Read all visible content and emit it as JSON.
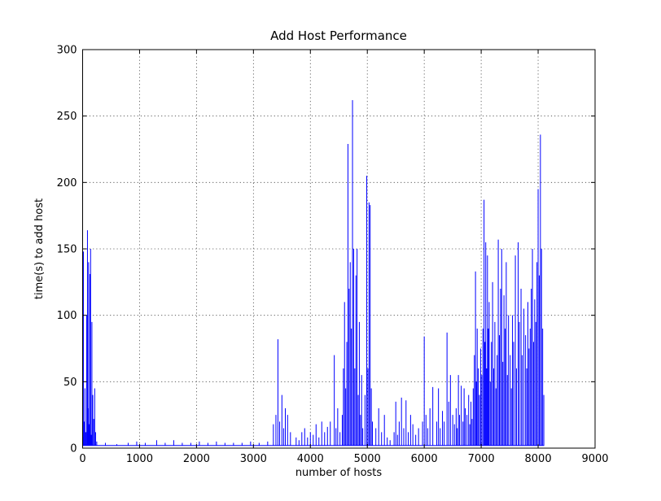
{
  "chart_data": {
    "type": "line",
    "title": "Add Host Performance",
    "xlabel": "number of hosts",
    "ylabel": "time(s) to add host",
    "xlim": [
      0,
      9000
    ],
    "ylim": [
      0,
      300
    ],
    "xticks": [
      0,
      1000,
      2000,
      3000,
      4000,
      5000,
      6000,
      7000,
      8000,
      9000
    ],
    "yticks": [
      0,
      50,
      100,
      150,
      200,
      250,
      300
    ],
    "grid": true,
    "legend": "none",
    "line_color": "#0000ff",
    "grid_color": "#444444",
    "axis_color": "#000000",
    "background_color": "#ffffff",
    "baseline": 2,
    "x_start": 0,
    "x_end": 8100,
    "spikes": [
      [
        5,
        8
      ],
      [
        15,
        148
      ],
      [
        25,
        20
      ],
      [
        40,
        45
      ],
      [
        55,
        12
      ],
      [
        70,
        100
      ],
      [
        85,
        164
      ],
      [
        95,
        30
      ],
      [
        105,
        140
      ],
      [
        118,
        18
      ],
      [
        128,
        131
      ],
      [
        140,
        150
      ],
      [
        152,
        10
      ],
      [
        163,
        95
      ],
      [
        178,
        40
      ],
      [
        195,
        22
      ],
      [
        212,
        45
      ],
      [
        228,
        12
      ],
      [
        248,
        5
      ],
      [
        400,
        4
      ],
      [
        600,
        3
      ],
      [
        800,
        4
      ],
      [
        950,
        5
      ],
      [
        1100,
        4
      ],
      [
        1300,
        6
      ],
      [
        1450,
        4
      ],
      [
        1600,
        6
      ],
      [
        1750,
        4
      ],
      [
        1900,
        4
      ],
      [
        2050,
        5
      ],
      [
        2200,
        4
      ],
      [
        2350,
        5
      ],
      [
        2500,
        4
      ],
      [
        2650,
        4
      ],
      [
        2800,
        4
      ],
      [
        2950,
        5
      ],
      [
        3100,
        4
      ],
      [
        3250,
        5
      ],
      [
        3350,
        18
      ],
      [
        3395,
        25
      ],
      [
        3430,
        82
      ],
      [
        3460,
        20
      ],
      [
        3500,
        40
      ],
      [
        3530,
        15
      ],
      [
        3560,
        30
      ],
      [
        3600,
        25
      ],
      [
        3650,
        12
      ],
      [
        3750,
        8
      ],
      [
        3800,
        6
      ],
      [
        3850,
        12
      ],
      [
        3900,
        15
      ],
      [
        3950,
        8
      ],
      [
        4000,
        12
      ],
      [
        4050,
        10
      ],
      [
        4100,
        18
      ],
      [
        4150,
        8
      ],
      [
        4200,
        20
      ],
      [
        4250,
        12
      ],
      [
        4300,
        16
      ],
      [
        4350,
        20
      ],
      [
        4420,
        70
      ],
      [
        4450,
        15
      ],
      [
        4480,
        30
      ],
      [
        4520,
        12
      ],
      [
        4560,
        25
      ],
      [
        4580,
        60
      ],
      [
        4600,
        110
      ],
      [
        4620,
        45
      ],
      [
        4640,
        80
      ],
      [
        4660,
        229
      ],
      [
        4680,
        120
      ],
      [
        4700,
        140
      ],
      [
        4720,
        90
      ],
      [
        4740,
        262
      ],
      [
        4760,
        150
      ],
      [
        4780,
        60
      ],
      [
        4800,
        130
      ],
      [
        4820,
        150
      ],
      [
        4840,
        40
      ],
      [
        4860,
        95
      ],
      [
        4880,
        25
      ],
      [
        4900,
        55
      ],
      [
        4920,
        15
      ],
      [
        4960,
        40
      ],
      [
        4990,
        205
      ],
      [
        5010,
        60
      ],
      [
        5030,
        185
      ],
      [
        5050,
        183
      ],
      [
        5070,
        45
      ],
      [
        5090,
        20
      ],
      [
        5150,
        15
      ],
      [
        5200,
        30
      ],
      [
        5250,
        12
      ],
      [
        5300,
        25
      ],
      [
        5350,
        8
      ],
      [
        5400,
        6
      ],
      [
        5470,
        12
      ],
      [
        5500,
        35
      ],
      [
        5530,
        10
      ],
      [
        5560,
        20
      ],
      [
        5600,
        38
      ],
      [
        5640,
        15
      ],
      [
        5680,
        36
      ],
      [
        5720,
        12
      ],
      [
        5760,
        25
      ],
      [
        5800,
        18
      ],
      [
        5850,
        10
      ],
      [
        5900,
        15
      ],
      [
        5970,
        20
      ],
      [
        6000,
        84
      ],
      [
        6030,
        25
      ],
      [
        6060,
        15
      ],
      [
        6100,
        30
      ],
      [
        6150,
        46
      ],
      [
        6220,
        20
      ],
      [
        6250,
        45
      ],
      [
        6280,
        15
      ],
      [
        6320,
        28
      ],
      [
        6350,
        20
      ],
      [
        6400,
        87
      ],
      [
        6430,
        35
      ],
      [
        6460,
        55
      ],
      [
        6500,
        25
      ],
      [
        6530,
        18
      ],
      [
        6560,
        30
      ],
      [
        6580,
        15
      ],
      [
        6600,
        55
      ],
      [
        6620,
        25
      ],
      [
        6650,
        47
      ],
      [
        6680,
        20
      ],
      [
        6700,
        45
      ],
      [
        6720,
        30
      ],
      [
        6750,
        25
      ],
      [
        6780,
        40
      ],
      [
        6800,
        18
      ],
      [
        6820,
        35
      ],
      [
        6840,
        22
      ],
      [
        6860,
        45
      ],
      [
        6880,
        70
      ],
      [
        6900,
        133
      ],
      [
        6915,
        50
      ],
      [
        6930,
        90
      ],
      [
        6950,
        60
      ],
      [
        6970,
        40
      ],
      [
        6990,
        75
      ],
      [
        7010,
        55
      ],
      [
        7030,
        90
      ],
      [
        7050,
        187
      ],
      [
        7065,
        80
      ],
      [
        7080,
        155
      ],
      [
        7095,
        60
      ],
      [
        7110,
        145
      ],
      [
        7125,
        90
      ],
      [
        7140,
        110
      ],
      [
        7160,
        50
      ],
      [
        7180,
        80
      ],
      [
        7200,
        125
      ],
      [
        7220,
        60
      ],
      [
        7240,
        95
      ],
      [
        7260,
        45
      ],
      [
        7280,
        70
      ],
      [
        7300,
        157
      ],
      [
        7320,
        85
      ],
      [
        7340,
        120
      ],
      [
        7360,
        150
      ],
      [
        7380,
        65
      ],
      [
        7400,
        115
      ],
      [
        7420,
        90
      ],
      [
        7440,
        140
      ],
      [
        7460,
        55
      ],
      [
        7480,
        100
      ],
      [
        7510,
        70
      ],
      [
        7530,
        45
      ],
      [
        7550,
        100
      ],
      [
        7570,
        80
      ],
      [
        7600,
        145
      ],
      [
        7620,
        60
      ],
      [
        7650,
        155
      ],
      [
        7670,
        95
      ],
      [
        7700,
        120
      ],
      [
        7720,
        70
      ],
      [
        7750,
        105
      ],
      [
        7780,
        85
      ],
      [
        7800,
        60
      ],
      [
        7820,
        110
      ],
      [
        7840,
        75
      ],
      [
        7860,
        90
      ],
      [
        7880,
        120
      ],
      [
        7900,
        150
      ],
      [
        7920,
        80
      ],
      [
        7940,
        112
      ],
      [
        7960,
        95
      ],
      [
        7980,
        140
      ],
      [
        8000,
        195
      ],
      [
        8020,
        130
      ],
      [
        8040,
        236
      ],
      [
        8060,
        150
      ],
      [
        8080,
        90
      ],
      [
        8100,
        40
      ]
    ]
  }
}
